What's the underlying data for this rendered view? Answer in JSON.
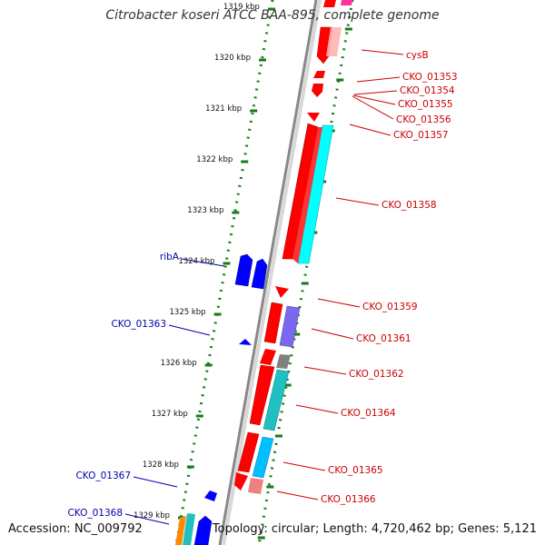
{
  "title": "Citrobacter koseri ATCC BAA-895, complete genome",
  "footer": {
    "accession": "Accession: NC_009792",
    "summary": "Topology: circular; Length: 4,720,462 bp; Genes: 5,121"
  },
  "ruler": {
    "ticks": [
      "1319 kbp",
      "1320 kbp",
      "1321 kbp",
      "1322 kbp",
      "1323 kbp",
      "1324 kbp",
      "1325 kbp",
      "1326 kbp",
      "1327 kbp",
      "1328 kbp",
      "1329 kbp"
    ]
  },
  "genes": {
    "forward": [
      {
        "label": "cysB",
        "color": "#ff0000"
      },
      {
        "label": "CKO_01353",
        "color": "#ff0000"
      },
      {
        "label": "CKO_01354",
        "color": "#ff0000"
      },
      {
        "label": "CKO_01355",
        "color": "#ff0000"
      },
      {
        "label": "CKO_01356",
        "color": "#ff0000"
      },
      {
        "label": "CKO_01357",
        "color": "#00ffff"
      },
      {
        "label": "CKO_01358",
        "color": "#ff0000"
      },
      {
        "label": "CKO_01359",
        "color": "#ff0000"
      },
      {
        "label": "CKO_01361",
        "color": "#7b68ee"
      },
      {
        "label": "CKO_01362",
        "color": "#808080"
      },
      {
        "label": "CKO_01364",
        "color": "#20c0c0"
      },
      {
        "label": "CKO_01365",
        "color": "#00bfff"
      },
      {
        "label": "CKO_01366",
        "color": "#f08080"
      }
    ],
    "reverse": [
      {
        "label": "ribA",
        "color": "#0000ff"
      },
      {
        "label": "CKO_01363",
        "color": "#0000ff"
      },
      {
        "label": "CKO_01367",
        "color": "#0000ff"
      },
      {
        "label": "CKO_01368",
        "color": "#0000ff"
      }
    ]
  },
  "colors": {
    "forward_label": "#cc0000",
    "reverse_label": "#0000aa",
    "backbone": "#888888",
    "ruler": "#1a7a1a"
  }
}
